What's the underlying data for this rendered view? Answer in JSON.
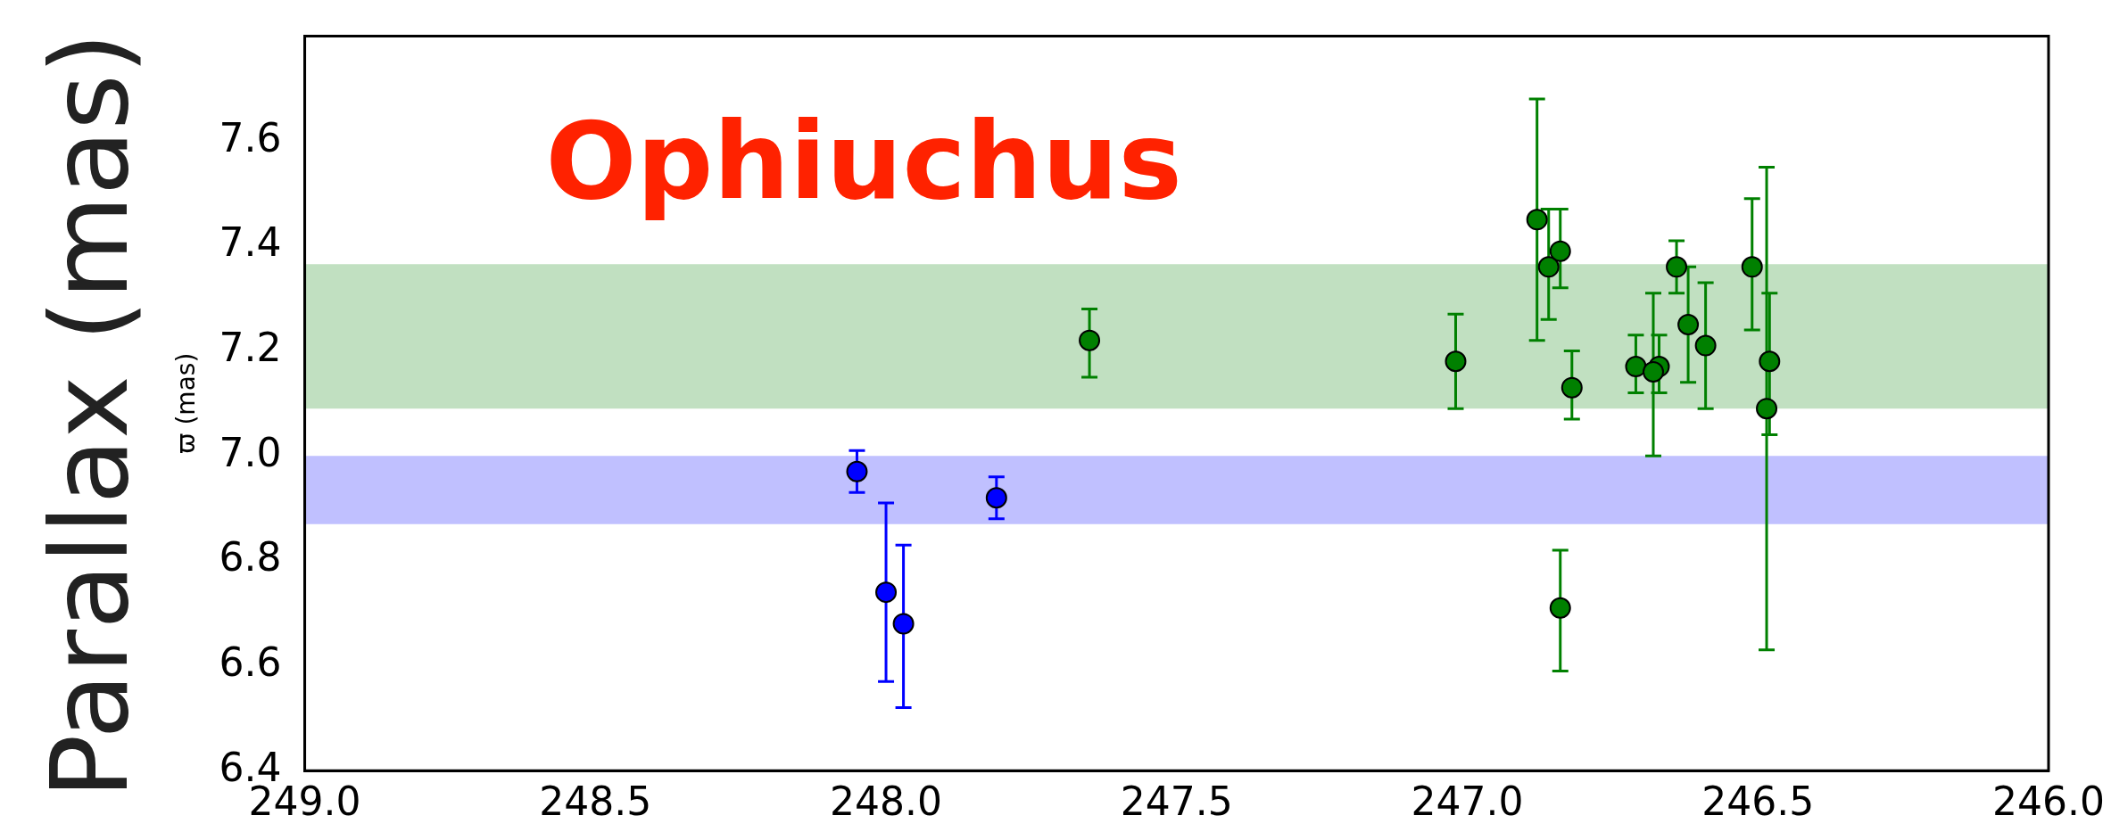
{
  "chart_data": {
    "type": "scatter",
    "title": "Ophiuchus",
    "ylabel": "Parallax (mas)",
    "annotations": [
      "ϖ (mas)"
    ],
    "xlim": [
      249,
      246
    ],
    "xticks": [
      {
        "value": 249,
        "label": "249.0"
      },
      {
        "value": 248.5,
        "label": "248.5"
      },
      {
        "value": 248,
        "label": "248.0"
      },
      {
        "value": 247.5,
        "label": "247.5"
      },
      {
        "value": 247,
        "label": "247.0"
      },
      {
        "value": 246.5,
        "label": "246.5"
      },
      {
        "value": 246,
        "label": "246.0"
      }
    ],
    "ylim": [
      6.4,
      7.8
    ],
    "yticks": [
      6.4,
      6.6,
      6.8,
      {
        "value": 7,
        "label": "7.0"
      },
      7.2,
      7.4,
      7.6
    ],
    "grid": false,
    "legend": false,
    "marker": "circle",
    "bands": [
      {
        "axis": "y",
        "from": 7.09,
        "to": 7.365,
        "color": "#c1e0c1"
      },
      {
        "axis": "y",
        "from": 6.87,
        "to": 7.0,
        "color": "#c0c0ff"
      }
    ],
    "series": [
      {
        "color": "#0000ff",
        "x": [
          248.05,
          248.0,
          247.97,
          247.81
        ],
        "values": [
          6.97,
          6.74,
          6.68,
          6.92
        ],
        "errors": [
          [
            6.93,
            7.01
          ],
          [
            6.57,
            6.91
          ],
          [
            6.52,
            6.83
          ],
          [
            6.88,
            6.96
          ]
        ]
      },
      {
        "color": "#008000",
        "x": [
          247.65,
          247.02,
          246.88,
          246.86,
          246.84,
          246.82,
          246.84,
          246.71,
          246.67,
          246.68,
          246.64,
          246.62,
          246.59,
          246.51,
          246.48,
          246.485
        ],
        "values": [
          7.22,
          7.18,
          7.45,
          7.36,
          7.39,
          7.13,
          6.71,
          7.17,
          7.17,
          7.16,
          7.36,
          7.25,
          7.21,
          7.36,
          7.18,
          7.09
        ],
        "errors": [
          [
            7.15,
            7.28
          ],
          [
            7.09,
            7.27
          ],
          [
            7.22,
            7.68
          ],
          [
            7.26,
            7.47
          ],
          [
            7.32,
            7.47
          ],
          [
            7.07,
            7.2
          ],
          [
            6.59,
            6.82
          ],
          [
            7.12,
            7.23
          ],
          [
            7.12,
            7.23
          ],
          [
            7.0,
            7.31
          ],
          [
            7.31,
            7.41
          ],
          [
            7.14,
            7.36
          ],
          [
            7.09,
            7.33
          ],
          [
            7.24,
            7.49
          ],
          [
            7.04,
            7.31
          ],
          [
            6.63,
            7.55
          ]
        ]
      }
    ]
  }
}
